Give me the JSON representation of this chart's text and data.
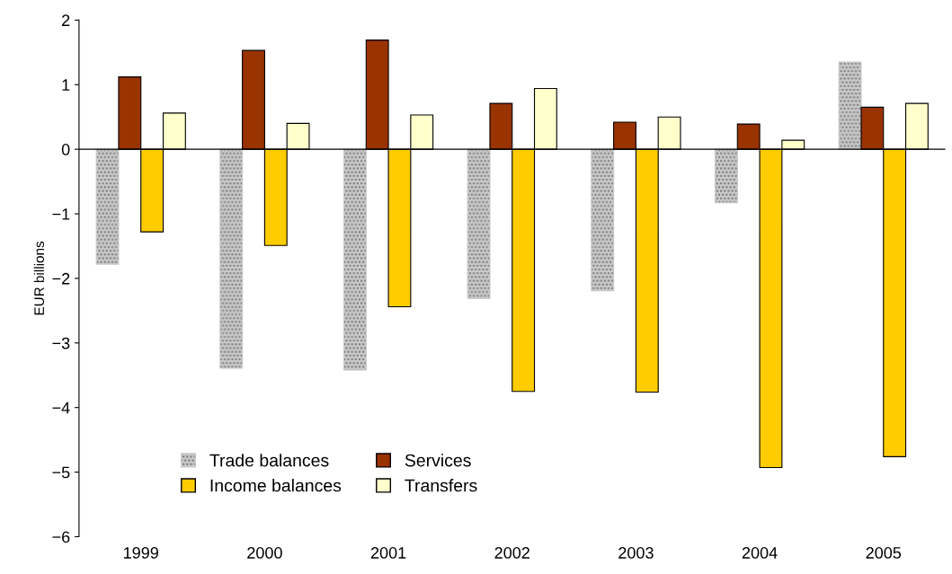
{
  "chart_data": {
    "type": "bar",
    "ylabel": "EUR billions",
    "categories": [
      "1999",
      "2000",
      "2001",
      "2002",
      "2003",
      "2004",
      "2005"
    ],
    "series": [
      {
        "name": "Trade balances",
        "color": "#c8c8c8",
        "values": [
          -1.78,
          -3.39,
          -3.42,
          -2.31,
          -2.19,
          -0.83,
          1.35
        ]
      },
      {
        "name": "Services",
        "color": "#993300",
        "values": [
          1.12,
          1.53,
          1.69,
          0.71,
          0.42,
          0.39,
          0.65
        ]
      },
      {
        "name": "Income balances",
        "color": "#ffcc00",
        "values": [
          -1.28,
          -1.49,
          -2.44,
          -3.75,
          -3.76,
          -4.93,
          -4.76
        ]
      },
      {
        "name": "Transfers",
        "color": "#ffffcc",
        "values": [
          0.56,
          0.4,
          0.53,
          0.94,
          0.5,
          0.14,
          0.71
        ]
      }
    ],
    "ylim": [
      -6,
      2
    ],
    "yticks": [
      {
        "value": -6,
        "label": "−6"
      },
      {
        "value": -5,
        "label": "−5"
      },
      {
        "value": -4,
        "label": "−4"
      },
      {
        "value": -3,
        "label": "−3"
      },
      {
        "value": -2,
        "label": "−2"
      },
      {
        "value": -1,
        "label": "−1"
      },
      0,
      1,
      2
    ],
    "ref_lines": [
      {
        "axis": "y",
        "value": 0,
        "color": "#000000"
      }
    ],
    "grid": false,
    "legend": "bottom left"
  }
}
